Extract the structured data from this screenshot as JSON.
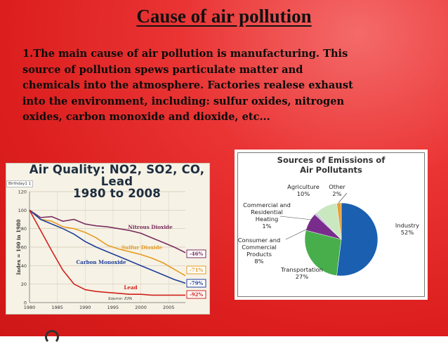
{
  "slide": {
    "title": "Cause of air pollution",
    "paragraph_lines": [
      "1.The main cause of air pollution is manufacturing. This",
      "source of pollution spews particulate matter and",
      "chemicals into the atmosphere. Factories realese exhaust",
      "into the environment, including: sulfur oxides, nitrogen",
      "oxides, carbon monoxide and dioxide, etc..."
    ]
  },
  "chart_data": [
    {
      "type": "line",
      "title_line1": "Air Quality: NO2, SO2, CO, Lead",
      "title_line2": "1980 to 2008",
      "tag": "Birthday1 1",
      "ylabel": "Index = 100 in 1980",
      "source": "Source: EPA",
      "xlim": [
        1980,
        2008
      ],
      "ylim": [
        0,
        120
      ],
      "x_ticks": [
        1980,
        1985,
        1990,
        1995,
        2000,
        2005
      ],
      "y_ticks": [
        0,
        20,
        40,
        60,
        80,
        100,
        120
      ],
      "series": [
        {
          "name": "Nitrous Dioxide",
          "color": "#7a2e5f",
          "end_label": "-46%",
          "x": [
            1980,
            1982,
            1984,
            1986,
            1988,
            1990,
            1992,
            1994,
            1996,
            1998,
            2000,
            2002,
            2004,
            2006,
            2008
          ],
          "values": [
            100,
            92,
            93,
            88,
            90,
            85,
            83,
            82,
            80,
            78,
            75,
            70,
            65,
            60,
            54
          ]
        },
        {
          "name": "Sulfur Dioxide",
          "color": "#e69b1f",
          "end_label": "-71%",
          "x": [
            1980,
            1982,
            1984,
            1986,
            1988,
            1990,
            1992,
            1994,
            1996,
            1998,
            2000,
            2002,
            2004,
            2006,
            2008
          ],
          "values": [
            100,
            90,
            88,
            82,
            80,
            76,
            70,
            62,
            58,
            55,
            52,
            48,
            43,
            36,
            29
          ]
        },
        {
          "name": "Carbon Monoxide",
          "color": "#1f3f9a",
          "end_label": "-79%",
          "x": [
            1980,
            1982,
            1984,
            1986,
            1988,
            1990,
            1992,
            1994,
            1996,
            1998,
            2000,
            2002,
            2004,
            2006,
            2008
          ],
          "values": [
            100,
            90,
            85,
            80,
            74,
            66,
            60,
            55,
            50,
            45,
            40,
            35,
            30,
            25,
            21
          ]
        },
        {
          "name": "Lead",
          "color": "#d0211b",
          "end_label": "-92%",
          "x": [
            1980,
            1982,
            1984,
            1986,
            1988,
            1990,
            1992,
            1994,
            1996,
            1998,
            2000,
            2002,
            2004,
            2006,
            2008
          ],
          "values": [
            100,
            78,
            56,
            35,
            20,
            14,
            12,
            11,
            10,
            9,
            9,
            8,
            8,
            8,
            8
          ]
        }
      ]
    },
    {
      "type": "pie",
      "title_line1": "Sources of Emissions of",
      "title_line2": "Air Pollutants",
      "slices": [
        {
          "label": "Industry",
          "pct_text": "52%",
          "value": 52,
          "color": "#1a5fb0"
        },
        {
          "label": "Transportation",
          "pct_text": "27%",
          "value": 27,
          "color": "#48ae4c"
        },
        {
          "label": "Consumer and Commercial Products",
          "pct_text": "8%",
          "value": 8,
          "color": "#7a2c8c"
        },
        {
          "label": "Commercial and Residential Heating",
          "pct_text": "1%",
          "value": 1,
          "color": "#c8c2d8"
        },
        {
          "label": "Agriculture",
          "pct_text": "10%",
          "value": 10,
          "color": "#c9e8c0"
        },
        {
          "label": "Other",
          "pct_text": "2%",
          "value": 2,
          "color": "#e8a03a"
        }
      ],
      "label_lines": {
        "industry": [
          "Industry",
          "52%"
        ],
        "transportation": [
          "Transportation",
          "27%"
        ],
        "consumer": [
          "Consumer and",
          "Commercial",
          "Products",
          "8%"
        ],
        "heating": [
          "Commercial and",
          "Residential",
          "Heating",
          "1%"
        ],
        "agriculture": [
          "Agriculture",
          "10%"
        ],
        "other": [
          "Other",
          "2%"
        ]
      }
    }
  ]
}
